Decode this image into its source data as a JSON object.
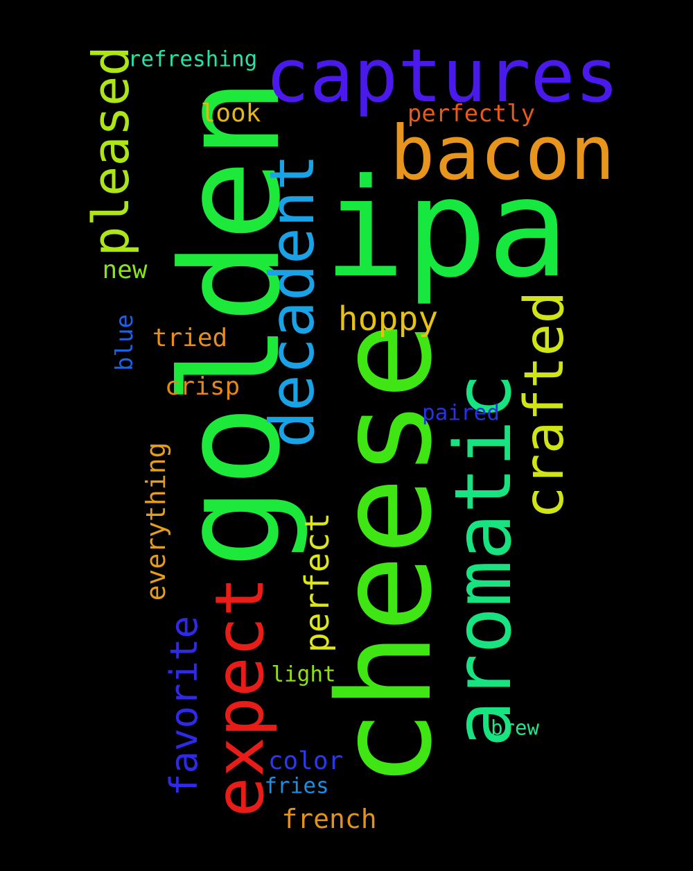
{
  "background": "#000000",
  "words": {
    "golden": {
      "text": "golden",
      "color": "#1de93a",
      "orientation": "vertical"
    },
    "cheese": {
      "text": "cheese",
      "color": "#40e614",
      "orientation": "vertical"
    },
    "ipa": {
      "text": "ipa",
      "color": "#17e83f",
      "orientation": "horizontal"
    },
    "captures": {
      "text": "captures",
      "color": "#4a1aec",
      "orientation": "horizontal"
    },
    "bacon": {
      "text": "bacon",
      "color": "#e8951d",
      "orientation": "horizontal"
    },
    "aromatic": {
      "text": "aromatic",
      "color": "#17e381",
      "orientation": "vertical"
    },
    "decadent": {
      "text": "decadent",
      "color": "#19a2e6",
      "orientation": "vertical"
    },
    "expect": {
      "text": "expect",
      "color": "#e81d17",
      "orientation": "vertical"
    },
    "crafted": {
      "text": "crafted",
      "color": "#cfe515",
      "orientation": "vertical"
    },
    "pleased": {
      "text": "pleased",
      "color": "#aee515",
      "orientation": "vertical"
    },
    "favorite": {
      "text": "favorite",
      "color": "#2f2ae8",
      "orientation": "vertical"
    },
    "perfect": {
      "text": "perfect",
      "color": "#dde616",
      "orientation": "vertical"
    },
    "hoppy": {
      "text": "hoppy",
      "color": "#e5c214",
      "orientation": "horizontal"
    },
    "everything": {
      "text": "everything",
      "color": "#e69d17",
      "orientation": "vertical"
    },
    "refreshing": {
      "text": "refreshing",
      "color": "#25e4a8",
      "orientation": "horizontal"
    },
    "perfectly": {
      "text": "perfectly",
      "color": "#e8591a",
      "orientation": "horizontal"
    },
    "look": {
      "text": "look",
      "color": "#e5b714",
      "orientation": "horizontal"
    },
    "new": {
      "text": "new",
      "color": "#8ae515",
      "orientation": "horizontal"
    },
    "blue": {
      "text": "blue",
      "color": "#1b62e6",
      "orientation": "vertical"
    },
    "tried": {
      "text": "tried",
      "color": "#e6901a",
      "orientation": "horizontal"
    },
    "crisp": {
      "text": "crisp",
      "color": "#e68818",
      "orientation": "horizontal"
    },
    "paired": {
      "text": "paired",
      "color": "#2a32e8",
      "orientation": "horizontal"
    },
    "light": {
      "text": "light",
      "color": "#8fe215",
      "orientation": "horizontal"
    },
    "brew": {
      "text": "brew",
      "color": "#25e38a",
      "orientation": "horizontal"
    },
    "color": {
      "text": "color",
      "color": "#2a3ae8",
      "orientation": "horizontal"
    },
    "fries": {
      "text": "fries",
      "color": "#1a8fe6",
      "orientation": "horizontal"
    },
    "french": {
      "text": "french",
      "color": "#e69118",
      "orientation": "horizontal"
    }
  }
}
